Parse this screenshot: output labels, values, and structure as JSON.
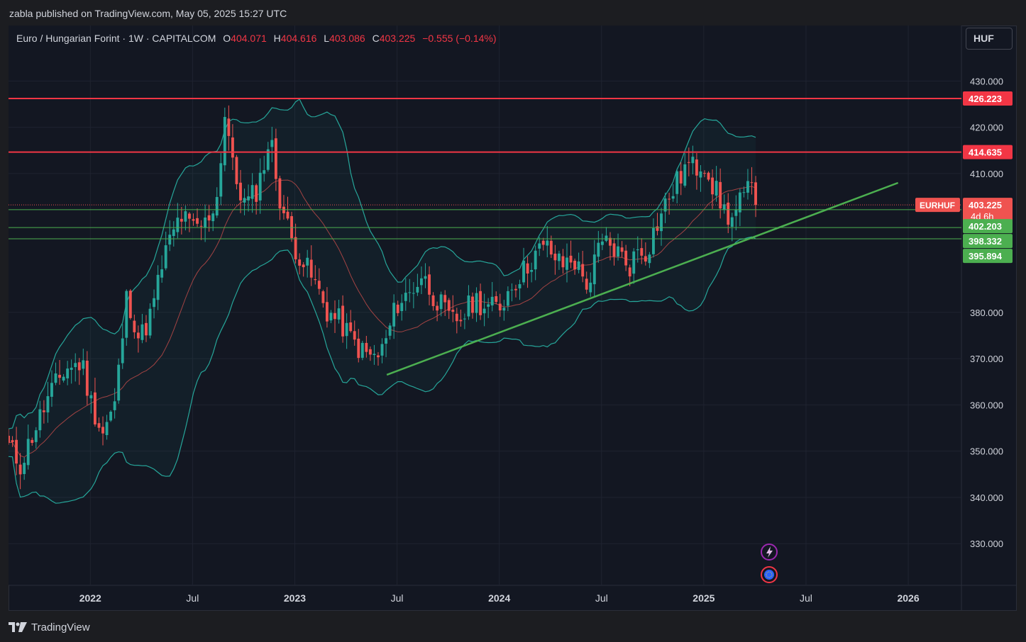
{
  "header": {
    "published_line": "zabla published on TradingView.com, May 05, 2025 15:27 UTC"
  },
  "legend": {
    "symbol": "Euro / Hungarian Forint · 1W · CAPITALCOM",
    "o_label": "O",
    "o_value": "404.071",
    "h_label": "H",
    "h_value": "404.616",
    "l_label": "L",
    "l_value": "403.086",
    "c_label": "C",
    "c_value": "403.225",
    "change": "−0.555 (−0.14%)"
  },
  "currency_button": "HUF",
  "footer": {
    "brand": "TradingView"
  },
  "colors": {
    "up": "#26a69a",
    "down": "#ef5350",
    "resistance": "#f23645",
    "support": "#4caf50",
    "trendline": "#4caf50",
    "bands": "#26a69a",
    "basis": "#e0524f",
    "background": "#131722"
  },
  "chart_data": {
    "type": "candlestick",
    "symbol": "EURHUF",
    "timeframe": "1W",
    "ylim": [
      321,
      442
    ],
    "y_ticks": [
      330,
      340,
      350,
      360,
      370,
      380,
      410,
      420,
      430
    ],
    "y_tick_labels": [
      "330.000",
      "340.000",
      "350.000",
      "360.000",
      "370.000",
      "380.000",
      "410.000",
      "420.000",
      "430.000"
    ],
    "x_ticks": [
      {
        "label": "2022",
        "t": 2022.0,
        "year": true
      },
      {
        "label": "Jul",
        "t": 2022.5,
        "year": false
      },
      {
        "label": "2023",
        "t": 2023.0,
        "year": true
      },
      {
        "label": "Jul",
        "t": 2023.5,
        "year": false
      },
      {
        "label": "2024",
        "t": 2024.0,
        "year": true
      },
      {
        "label": "Jul",
        "t": 2024.5,
        "year": false
      },
      {
        "label": "2025",
        "t": 2025.0,
        "year": true
      },
      {
        "label": "Jul",
        "t": 2025.5,
        "year": false
      },
      {
        "label": "2026",
        "t": 2026.0,
        "year": true
      }
    ],
    "xlim": [
      2021.6,
      2026.26
    ],
    "close_anchors": [
      [
        2021.6,
        351
      ],
      [
        2021.66,
        347
      ],
      [
        2021.72,
        354
      ],
      [
        2021.8,
        362
      ],
      [
        2021.88,
        368
      ],
      [
        2021.96,
        369
      ],
      [
        2022.0,
        361
      ],
      [
        2022.06,
        354
      ],
      [
        2022.12,
        360
      ],
      [
        2022.18,
        384
      ],
      [
        2022.24,
        374
      ],
      [
        2022.3,
        380
      ],
      [
        2022.36,
        392
      ],
      [
        2022.44,
        401
      ],
      [
        2022.5,
        398
      ],
      [
        2022.56,
        399
      ],
      [
        2022.62,
        405
      ],
      [
        2022.66,
        424
      ],
      [
        2022.7,
        410
      ],
      [
        2022.76,
        403
      ],
      [
        2022.82,
        407
      ],
      [
        2022.88,
        418
      ],
      [
        2022.92,
        406
      ],
      [
        2022.98,
        396
      ],
      [
        2023.04,
        391
      ],
      [
        2023.1,
        386
      ],
      [
        2023.16,
        380
      ],
      [
        2023.22,
        378
      ],
      [
        2023.28,
        374
      ],
      [
        2023.34,
        371
      ],
      [
        2023.4,
        370
      ],
      [
        2023.44,
        373
      ],
      [
        2023.5,
        382
      ],
      [
        2023.56,
        384
      ],
      [
        2023.62,
        388
      ],
      [
        2023.66,
        385
      ],
      [
        2023.72,
        381
      ],
      [
        2023.76,
        378
      ],
      [
        2023.82,
        379
      ],
      [
        2023.88,
        383
      ],
      [
        2023.94,
        381
      ],
      [
        2024.0,
        381
      ],
      [
        2024.06,
        386
      ],
      [
        2024.12,
        389
      ],
      [
        2024.18,
        393
      ],
      [
        2024.24,
        394
      ],
      [
        2024.3,
        390
      ],
      [
        2024.36,
        392
      ],
      [
        2024.4,
        388
      ],
      [
        2024.44,
        386
      ],
      [
        2024.48,
        393
      ],
      [
        2024.52,
        395
      ],
      [
        2024.58,
        393
      ],
      [
        2024.64,
        390
      ],
      [
        2024.68,
        394
      ],
      [
        2024.72,
        393
      ],
      [
        2024.76,
        398
      ],
      [
        2024.82,
        404
      ],
      [
        2024.88,
        409
      ],
      [
        2024.92,
        412
      ],
      [
        2024.96,
        411
      ],
      [
        2025.0,
        413
      ],
      [
        2025.04,
        408
      ],
      [
        2025.1,
        402
      ],
      [
        2025.14,
        400
      ],
      [
        2025.18,
        404
      ],
      [
        2025.24,
        407
      ],
      [
        2025.27,
        403.225
      ]
    ],
    "last_price": 403.225,
    "last_price_label": "403.225",
    "symbol_badge": "EURHUF",
    "countdown": "4d 6h",
    "resistance_levels": [
      {
        "value": 426.223,
        "label": "426.223"
      },
      {
        "value": 414.635,
        "label": "414.635"
      }
    ],
    "support_levels": [
      {
        "value": 402.203,
        "label": "402.203"
      },
      {
        "value": 398.332,
        "label": "398.332"
      },
      {
        "value": 395.894,
        "label": "395.894"
      }
    ],
    "trendline": {
      "from": [
        2023.45,
        366.5
      ],
      "to": [
        2025.95,
        408
      ]
    },
    "bollinger_bands": {
      "period": 20,
      "stddev": 2
    }
  }
}
